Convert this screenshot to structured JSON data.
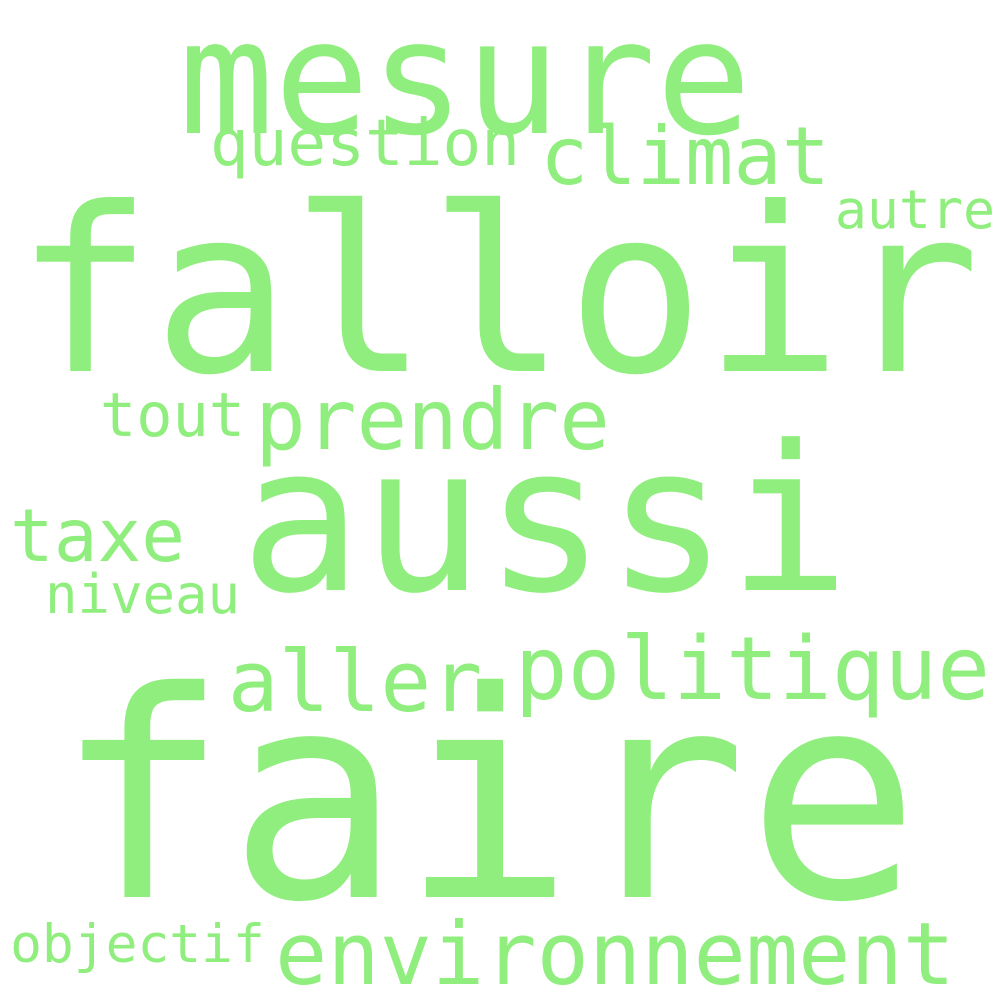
{
  "word_color": "#90EE7E",
  "background_color": "#FFFFFF",
  "words": [
    {
      "text": "faire"
    },
    {
      "text": "falloir"
    },
    {
      "text": "aussi"
    },
    {
      "text": "mesure"
    },
    {
      "text": "politique"
    },
    {
      "text": "environnement"
    },
    {
      "text": "prendre"
    },
    {
      "text": "climat"
    },
    {
      "text": "aller"
    },
    {
      "text": "question"
    },
    {
      "text": "taxe"
    },
    {
      "text": "tout"
    },
    {
      "text": "objectif"
    },
    {
      "text": "niveau"
    },
    {
      "text": "autre"
    }
  ]
}
